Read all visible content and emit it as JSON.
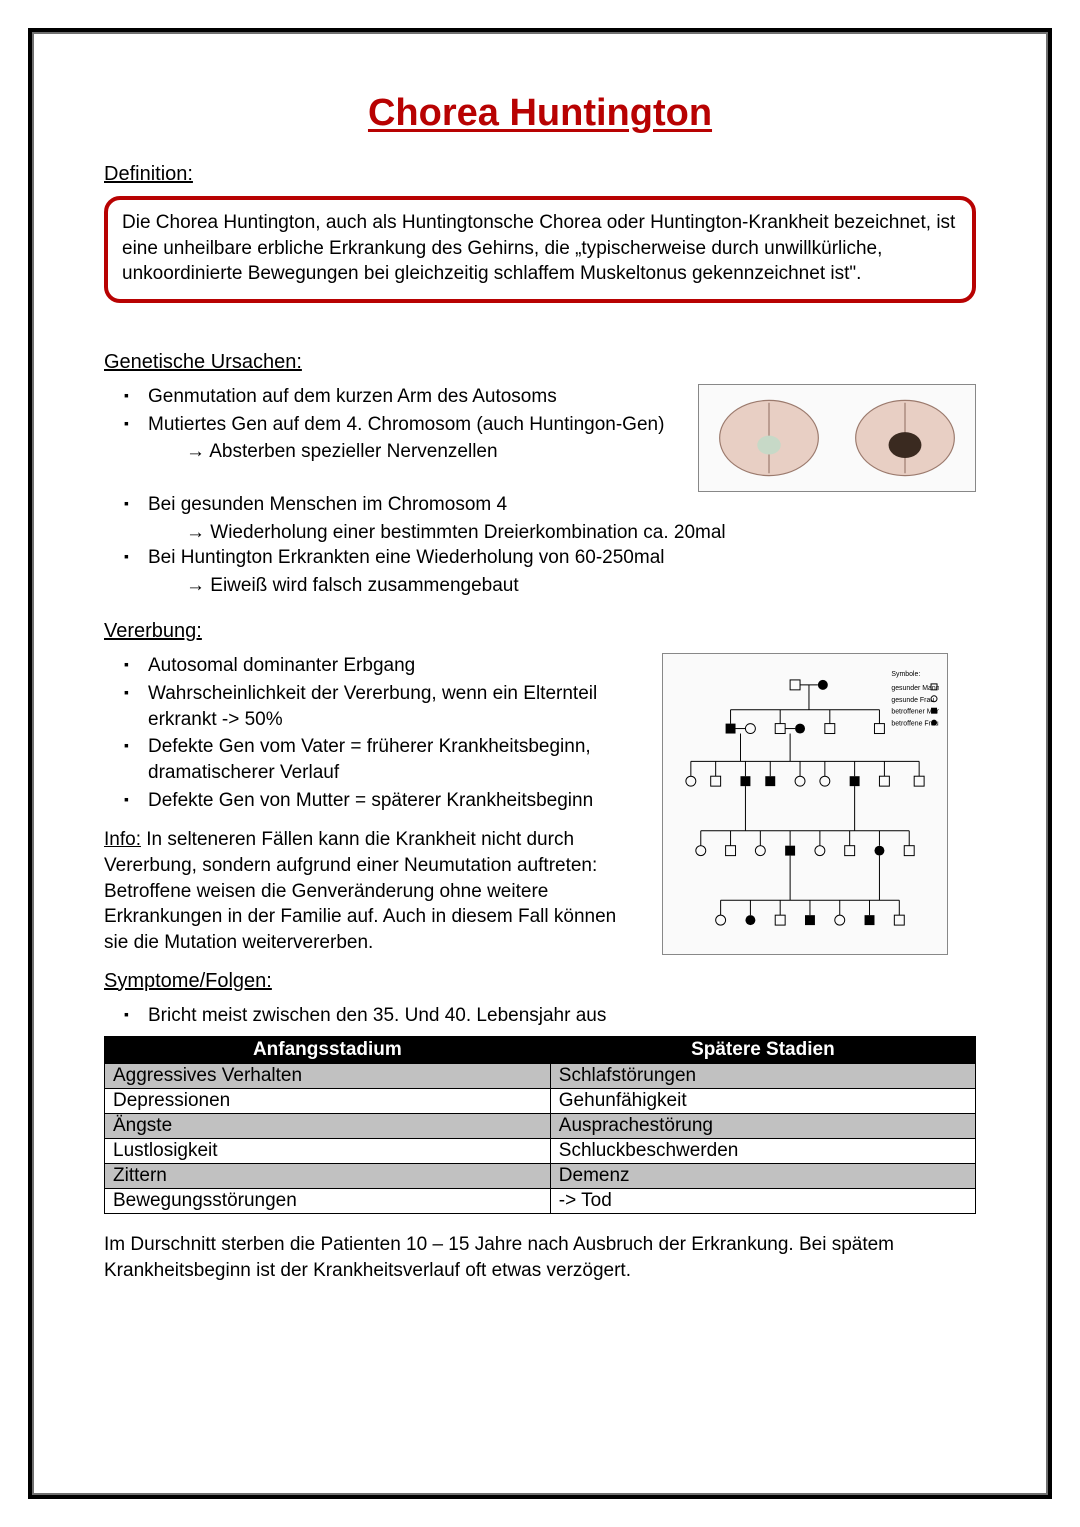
{
  "title": {
    "text": "Chorea Huntington",
    "color": "#b80202"
  },
  "headings": {
    "definition": "Definition:",
    "genetic": "Genetische Ursachen:",
    "inheritance": "Vererbung:",
    "symptoms": "Symptome/Folgen:"
  },
  "definition_box": {
    "text": "Die Chorea Huntington, auch als Huntingtonsche Chorea oder Huntington-Krankheit bezeichnet, ist eine unheilbare erbliche Erkrankung des Gehirns, die „typischerweise durch unwillkürliche, unkoordinierte Bewegungen bei gleichzeitig schlaffem Muskeltonus gekennzeichnet ist\".",
    "border_color": "#b80202"
  },
  "genetic": {
    "items": [
      "Genmutation auf dem kurzen Arm des Autosoms",
      "Mutiertes Gen auf dem 4. Chromosom (auch Huntingon-Gen)"
    ],
    "sub1": "Absterben spezieller Nervenzellen",
    "items2": [
      "Bei gesunden Menschen im Chromosom 4"
    ],
    "sub2": "Wiederholung einer bestimmten Dreierkombination ca. 20mal",
    "items3": [
      "Bei Huntington Erkrankten eine Wiederholung von 60-250mal"
    ],
    "sub3": "Eiweiß wird falsch zusammengebaut"
  },
  "inheritance": {
    "items": [
      "Autosomal dominanter Erbgang",
      "Wahrscheinlichkeit der Vererbung, wenn ein Elternteil erkrankt -> 50%",
      "Defekte Gen vom Vater = früherer Krankheitsbeginn, dramatischerer Verlauf",
      "Defekte Gen von Mutter = späterer Krankheitsbeginn"
    ]
  },
  "info": {
    "label": "Info:",
    "text": " In selteneren Fällen kann die Krankheit nicht durch Vererbung, sondern aufgrund einer Neumutation auftreten: Betroffene weisen die Genveränderung ohne weitere Erkrankungen in der Familie auf. Auch in diesem Fall können sie die Mutation weitervererben."
  },
  "symptoms": {
    "intro_item": "Bricht meist zwischen den 35. Und 40. Lebensjahr aus",
    "table": {
      "columns": [
        "Anfangsstadium",
        "Spätere Stadien"
      ],
      "rows": [
        [
          "Aggressives Verhalten",
          "Schlafstörungen"
        ],
        [
          "Depressionen",
          "Gehunfähigkeit"
        ],
        [
          "Ängste",
          "Ausprachestörung"
        ],
        [
          "Lustlosigkeit",
          "Schluckbeschwerden"
        ],
        [
          "Zittern",
          "Demenz"
        ],
        [
          "Bewegungsstörungen",
          "-> Tod"
        ]
      ],
      "header_bg": "#000000",
      "header_fg": "#ffffff",
      "row_alt_bg": "#c1c1c1"
    },
    "footer": "Im Durschnitt sterben die Patienten 10 – 15 Jahre nach Ausbruch der Erkrankung. Bei spätem Krankheitsbeginn ist der Krankheitsverlauf oft etwas verzögert."
  },
  "pedigree": {
    "legend_title": "Symbole:",
    "legend": [
      "gesunder Mann",
      "gesunde Frau",
      "betroffener Mann",
      "betroffene Frau"
    ]
  }
}
